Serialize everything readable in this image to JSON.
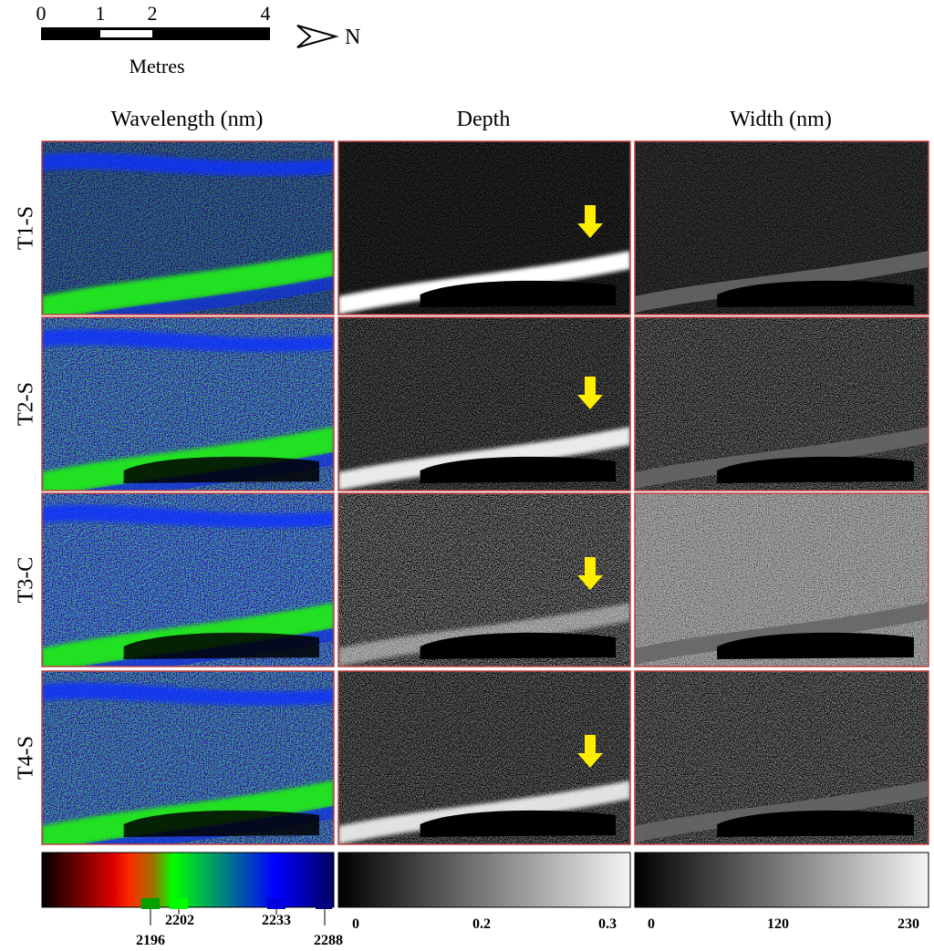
{
  "scale_bar": {
    "ticks": [
      0,
      1,
      2,
      4
    ],
    "unit": "Metres",
    "north": "N"
  },
  "columns": [
    "Wavelength (nm)",
    "Depth",
    "Width (nm)"
  ],
  "rows": [
    "T1-S",
    "T2-S",
    "T3-C",
    "T4-S"
  ],
  "colorbars": [
    {
      "ticks": [
        2196,
        2202,
        2233,
        2288
      ]
    },
    {
      "ticks": [
        0,
        0.2,
        0.3
      ]
    },
    {
      "ticks": [
        0,
        120,
        230
      ]
    }
  ]
}
